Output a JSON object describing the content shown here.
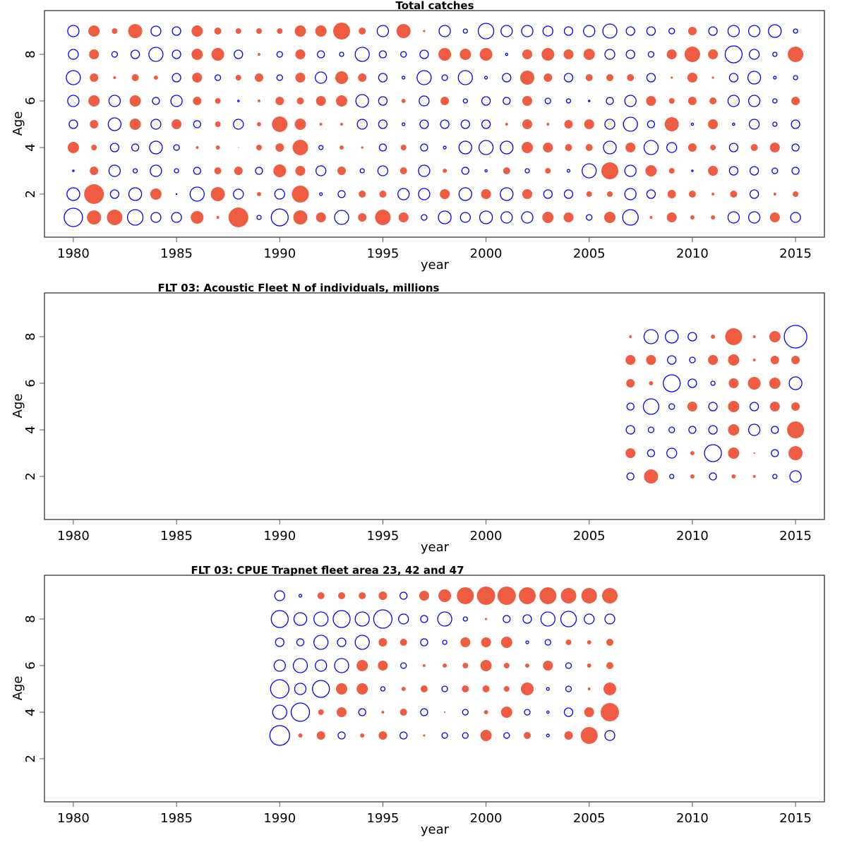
{
  "colors": {
    "positive": "#ee5c42",
    "negative": "#0000ff"
  },
  "chart_data": [
    {
      "type": "scatter",
      "subtype": "bubble",
      "title": "Total catches",
      "xlabel": "year",
      "ylabel": "Age",
      "xlim": [
        1978.6,
        2016.4
      ],
      "ylim": [
        0.15,
        9.88
      ],
      "xticks": [
        1980,
        1985,
        1990,
        1995,
        2000,
        2005,
        2010,
        2015
      ],
      "yticks": [
        2,
        4,
        6,
        8
      ],
      "xtick_labels": [
        "1980",
        "1985",
        "1990",
        "1995",
        "2000",
        "2005",
        "2010",
        "2015"
      ],
      "ytick_labels": [
        "2",
        "4",
        "6",
        "8"
      ],
      "encoding": "bubble area proportional to |value|; positive = filled red, negative = open blue",
      "years": [
        1980,
        1981,
        1982,
        1983,
        1984,
        1985,
        1986,
        1987,
        1988,
        1989,
        1990,
        1991,
        1992,
        1993,
        1994,
        1995,
        1996,
        1997,
        1998,
        1999,
        2000,
        2001,
        2002,
        2003,
        2004,
        2005,
        2006,
        2007,
        2008,
        2009,
        2010,
        2011,
        2012,
        2013,
        2014,
        2015
      ],
      "ages": [
        1,
        2,
        3,
        4,
        5,
        6,
        7,
        8,
        9
      ],
      "values": {
        "9": [
          -1.0,
          1.0,
          0.25,
          1.56,
          -0.77,
          -0.56,
          1.0,
          0.39,
          0.25,
          0.25,
          0.25,
          1.0,
          1.0,
          2.25,
          0.39,
          -1.0,
          1.56,
          0.04,
          -1.0,
          -0.14,
          -1.89,
          -1.0,
          -1.0,
          -0.77,
          -0.56,
          -1.0,
          -1.56,
          -0.56,
          -0.56,
          -0.25,
          0.56,
          -0.56,
          -1.0,
          -1.0,
          -1.27,
          -0.14
        ],
        "8": [
          -0.77,
          0.77,
          -0.25,
          -0.56,
          -1.56,
          -0.56,
          1.0,
          1.27,
          -0.56,
          0.06,
          -0.25,
          0.77,
          -0.39,
          -0.14,
          -1.56,
          -0.39,
          -0.25,
          -0.56,
          1.27,
          1.0,
          1.27,
          -0.04,
          0.77,
          1.27,
          0.77,
          1.0,
          -0.77,
          -0.56,
          -0.25,
          0.77,
          1.89,
          0.77,
          -2.25,
          -0.77,
          -0.14,
          1.89
        ],
        "7": [
          -1.56,
          0.56,
          0.06,
          0.39,
          0.14,
          -0.56,
          0.77,
          -0.25,
          0.25,
          0.56,
          -0.25,
          0.77,
          -1.0,
          1.27,
          0.56,
          -0.56,
          -0.06,
          -1.56,
          -0.25,
          -1.56,
          -0.06,
          -0.56,
          1.56,
          0.56,
          -0.56,
          0.39,
          0.39,
          0.39,
          -0.56,
          0.04,
          0.77,
          0.04,
          -0.56,
          -1.27,
          -0.06,
          -0.14
        ],
        "6": [
          -1.0,
          1.0,
          -1.0,
          1.0,
          -0.39,
          -1.0,
          0.56,
          0.25,
          -0.02,
          0.06,
          0.56,
          0.39,
          0.77,
          1.0,
          -1.27,
          -0.56,
          0.14,
          -0.77,
          0.56,
          -0.14,
          -0.56,
          -0.39,
          0.77,
          -0.25,
          -0.14,
          -0.02,
          -0.39,
          -1.0,
          0.77,
          0.25,
          0.56,
          0.39,
          -1.0,
          -1.0,
          -0.14,
          0.56
        ],
        "5": [
          -0.56,
          0.56,
          -1.27,
          1.0,
          -0.77,
          0.77,
          -0.39,
          0.25,
          -0.77,
          0.14,
          1.89,
          1.0,
          0.06,
          0.06,
          -0.77,
          -0.56,
          -0.06,
          -0.56,
          -0.56,
          -0.56,
          -0.56,
          0.06,
          0.77,
          0.06,
          0.56,
          0.77,
          -0.77,
          -1.56,
          -0.39,
          1.56,
          -0.04,
          0.77,
          -0.04,
          -0.77,
          -0.14,
          -0.56
        ],
        "4": [
          1.0,
          0.25,
          -0.56,
          -0.39,
          -1.27,
          -0.25,
          0.06,
          0.14,
          0.004,
          0.25,
          0.56,
          1.89,
          -0.14,
          0.14,
          0.04,
          -0.39,
          0.25,
          -0.39,
          -0.06,
          -1.27,
          -1.56,
          -1.27,
          1.0,
          0.77,
          0.39,
          0.39,
          -1.27,
          0.77,
          -1.56,
          -0.77,
          0.56,
          0.25,
          -0.56,
          0.39,
          0.77,
          -0.39
        ],
        "3": [
          -0.02,
          0.56,
          -1.0,
          -0.14,
          -1.0,
          -0.14,
          -0.39,
          0.39,
          0.56,
          -0.39,
          1.27,
          0.77,
          -0.77,
          0.56,
          -0.14,
          -0.77,
          0.39,
          -1.0,
          0.14,
          -0.39,
          -0.04,
          0.39,
          -0.14,
          0.25,
          -0.06,
          -1.56,
          2.25,
          -1.0,
          1.0,
          0.25,
          -0.02,
          0.77,
          -0.56,
          -0.56,
          -0.25,
          -0.39
        ],
        "2": [
          -1.27,
          3.06,
          -0.56,
          -1.27,
          1.0,
          -0.004,
          -1.56,
          1.56,
          -0.77,
          0.14,
          -0.77,
          2.25,
          -0.06,
          -0.39,
          0.39,
          0.39,
          -1.0,
          -1.0,
          0.77,
          -1.27,
          0.77,
          -1.27,
          0.77,
          -0.56,
          -0.56,
          0.25,
          0.25,
          -1.0,
          -0.56,
          0.56,
          0.39,
          0.06,
          0.39,
          -0.56,
          0.06,
          0.25
        ],
        "1": [
          -2.64,
          1.56,
          1.89,
          -1.89,
          -0.77,
          -0.77,
          1.27,
          0.06,
          3.06,
          -0.14,
          -2.25,
          1.56,
          0.77,
          -1.56,
          0.56,
          1.89,
          0.77,
          -0.25,
          -1.27,
          -0.77,
          -1.27,
          -1.0,
          -1.0,
          1.0,
          0.77,
          -0.25,
          1.0,
          -1.89,
          0.06,
          0.77,
          0.14,
          0.14,
          -1.0,
          -1.0,
          0.77,
          -0.77
        ]
      }
    },
    {
      "type": "scatter",
      "subtype": "bubble",
      "title": "FLT 03: Acoustic Fleet   N of individuals, millions",
      "xlabel": "year",
      "ylabel": "Age",
      "xlim": [
        1978.6,
        2016.4
      ],
      "ylim": [
        0.15,
        9.88
      ],
      "xticks": [
        1980,
        1985,
        1990,
        1995,
        2000,
        2005,
        2010,
        2015
      ],
      "yticks": [
        2,
        4,
        6,
        8
      ],
      "xtick_labels": [
        "1980",
        "1985",
        "1990",
        "1995",
        "2000",
        "2005",
        "2010",
        "2015"
      ],
      "ytick_labels": [
        "2",
        "4",
        "6",
        "8"
      ],
      "encoding": "bubble area proportional to |value|; positive = filled red, negative = open blue",
      "years": [
        2007,
        2008,
        2009,
        2010,
        2011,
        2012,
        2013,
        2014,
        2015
      ],
      "ages": [
        2,
        3,
        4,
        5,
        6,
        7,
        8
      ],
      "values": {
        "8": [
          0.06,
          -1.56,
          -1.27,
          -0.56,
          0.14,
          2.25,
          0.06,
          1.0,
          -4.0
        ],
        "7": [
          0.77,
          0.77,
          -0.56,
          -0.25,
          0.77,
          1.0,
          0.06,
          0.56,
          0.56
        ],
        "6": [
          0.56,
          0.14,
          -2.25,
          -0.56,
          -0.14,
          0.77,
          1.27,
          1.0,
          -1.27
        ],
        "5": [
          -0.39,
          -1.89,
          -0.25,
          0.77,
          -0.56,
          1.0,
          -0.56,
          0.77,
          0.56
        ],
        "4": [
          -0.56,
          -0.25,
          -0.25,
          -0.39,
          -0.56,
          1.0,
          -1.0,
          -0.39,
          2.25
        ],
        "3": [
          0.77,
          -0.39,
          -0.77,
          0.14,
          -2.25,
          1.0,
          0.02,
          -0.39,
          1.56
        ],
        "2": [
          -0.39,
          1.56,
          -0.14,
          0.14,
          -0.39,
          0.14,
          0.06,
          -0.14,
          -1.0
        ]
      }
    },
    {
      "type": "scatter",
      "subtype": "bubble",
      "title": "FLT 03: CPUE Trapnet fleet area 23, 42 and 47",
      "xlabel": "year",
      "ylabel": "Age",
      "xlim": [
        1978.6,
        2016.4
      ],
      "ylim": [
        0.15,
        9.88
      ],
      "xticks": [
        1980,
        1985,
        1990,
        1995,
        2000,
        2005,
        2010,
        2015
      ],
      "yticks": [
        2,
        4,
        6,
        8
      ],
      "xtick_labels": [
        "1980",
        "1985",
        "1990",
        "1995",
        "2000",
        "2005",
        "2010",
        "2015"
      ],
      "ytick_labels": [
        "2",
        "4",
        "6",
        "8"
      ],
      "encoding": "bubble area proportional to |value|; positive = filled red, negative = open blue",
      "years": [
        1990,
        1991,
        1992,
        1993,
        1994,
        1995,
        1996,
        1997,
        1998,
        1999,
        2000,
        2001,
        2002,
        2003,
        2004,
        2005,
        2006
      ],
      "ages": [
        3,
        4,
        5,
        6,
        7,
        8,
        9
      ],
      "values": {
        "9": [
          -0.77,
          -0.06,
          0.39,
          0.39,
          0.39,
          0.56,
          -0.39,
          0.77,
          1.27,
          2.25,
          2.64,
          2.64,
          2.25,
          2.25,
          1.89,
          1.89,
          1.89
        ],
        "8": [
          -2.25,
          -1.27,
          -1.56,
          -2.25,
          -1.56,
          -2.64,
          -0.77,
          -0.39,
          -1.56,
          -0.14,
          0.04,
          -0.39,
          -0.56,
          -1.56,
          -1.89,
          -0.77,
          -0.77
        ],
        "7": [
          -0.56,
          -0.39,
          -1.56,
          -0.56,
          -1.56,
          0.56,
          0.39,
          -0.39,
          -0.14,
          0.77,
          0.77,
          1.0,
          -0.06,
          -0.25,
          0.25,
          0.14,
          0.39
        ],
        "6": [
          -1.0,
          -1.56,
          -1.0,
          -1.56,
          1.0,
          0.77,
          -0.25,
          0.06,
          0.14,
          0.25,
          1.0,
          0.25,
          0.14,
          0.77,
          -0.25,
          0.14,
          0.39
        ],
        "5": [
          -2.64,
          -1.0,
          -2.25,
          1.0,
          1.0,
          -0.14,
          0.14,
          0.39,
          -0.25,
          0.39,
          0.39,
          0.25,
          1.27,
          -0.06,
          -0.25,
          0.06,
          1.27
        ],
        "4": [
          -1.56,
          -2.64,
          0.25,
          0.77,
          -0.39,
          0.06,
          0.39,
          -0.39,
          0.02,
          -0.25,
          0.14,
          1.0,
          -0.25,
          -0.04,
          -0.56,
          0.77,
          2.64
        ],
        "3": [
          -3.06,
          0.14,
          0.56,
          -0.39,
          0.14,
          0.56,
          -0.39,
          0.04,
          -0.25,
          -0.25,
          1.0,
          -0.25,
          0.39,
          -0.06,
          0.56,
          2.25,
          -0.77
        ]
      }
    }
  ]
}
